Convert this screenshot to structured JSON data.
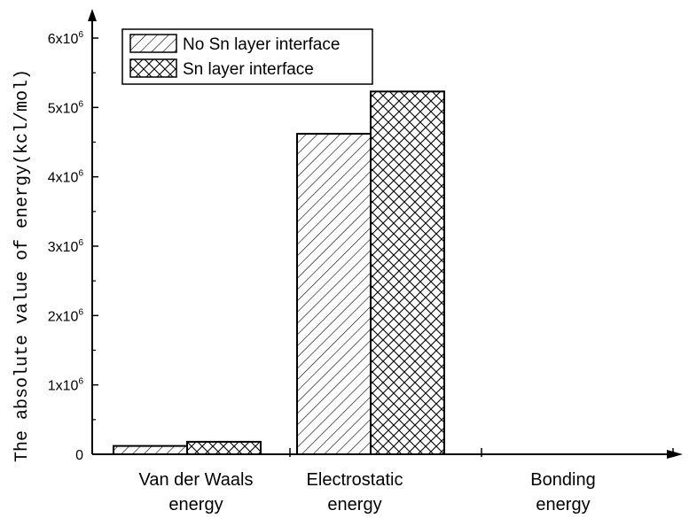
{
  "chart_data": {
    "type": "bar",
    "categories": [
      [
        "Van der Waals",
        "energy"
      ],
      [
        "Electrostatic",
        "energy"
      ],
      [
        "Bonding",
        "energy"
      ]
    ],
    "series": [
      {
        "name": "No Sn layer interface",
        "values": [
          120000,
          4620000,
          0
        ],
        "pattern": "diagonal-hatch"
      },
      {
        "name": "Sn layer interface",
        "values": [
          180000,
          5230000,
          0
        ],
        "pattern": "cross-hatch"
      }
    ],
    "ylabel": "The absolute value of energy(kcl/mol)",
    "xlabel": "",
    "ylim": [
      0,
      6000000
    ],
    "yticks": [
      {
        "value": 0,
        "label": "0",
        "exp": ""
      },
      {
        "value": 1000000,
        "label": "1x10",
        "exp": "6"
      },
      {
        "value": 2000000,
        "label": "2x10",
        "exp": "6"
      },
      {
        "value": 3000000,
        "label": "3x10",
        "exp": "6"
      },
      {
        "value": 4000000,
        "label": "4x10",
        "exp": "6"
      },
      {
        "value": 5000000,
        "label": "5x10",
        "exp": "6"
      },
      {
        "value": 6000000,
        "label": "6x10",
        "exp": "6"
      }
    ],
    "legend_position": "top-left",
    "grid": false
  }
}
